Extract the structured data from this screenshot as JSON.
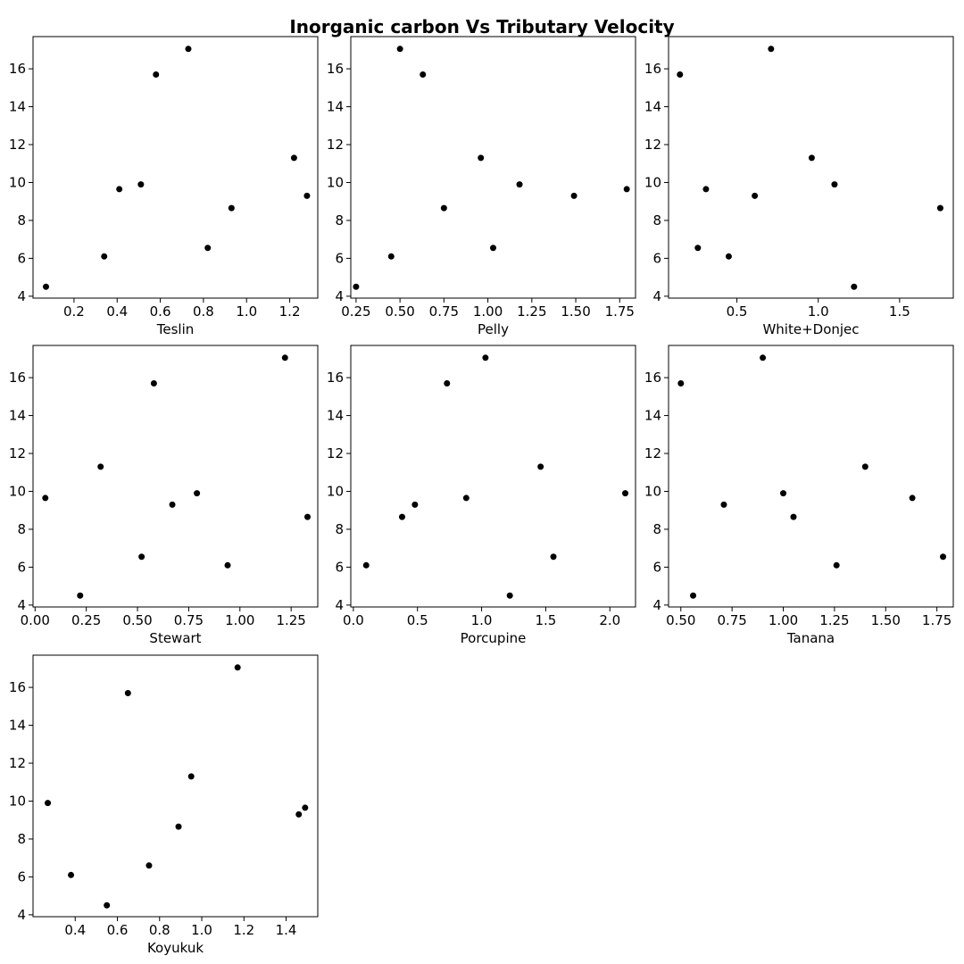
{
  "title": "Inorganic carbon Vs Tributary Velocity",
  "chart_data": [
    {
      "type": "scatter",
      "xlabel": "Teslin",
      "xlim": [
        0.01,
        1.33
      ],
      "ylim": [
        3.9,
        17.7
      ],
      "xticks": [
        0.2,
        0.4,
        0.6,
        0.8,
        1.0,
        1.2
      ],
      "yticks": [
        4,
        6,
        8,
        10,
        12,
        14,
        16
      ],
      "x": [
        0.07,
        0.34,
        0.41,
        0.51,
        0.58,
        0.73,
        0.82,
        0.93,
        1.22,
        1.28
      ],
      "y": [
        4.5,
        6.1,
        9.65,
        9.9,
        15.7,
        17.05,
        6.55,
        8.65,
        11.3,
        9.3
      ]
    },
    {
      "type": "scatter",
      "xlabel": "Pelly",
      "xlim": [
        0.22,
        1.84
      ],
      "ylim": [
        3.9,
        17.7
      ],
      "xticks": [
        0.25,
        0.5,
        0.75,
        1.0,
        1.25,
        1.5,
        1.75
      ],
      "yticks": [
        4,
        6,
        8,
        10,
        12,
        14,
        16
      ],
      "x": [
        0.25,
        0.45,
        0.5,
        0.63,
        0.75,
        0.96,
        1.03,
        1.18,
        1.49,
        1.79
      ],
      "y": [
        4.5,
        6.1,
        17.05,
        15.7,
        8.65,
        11.3,
        6.55,
        9.9,
        9.3,
        9.65
      ]
    },
    {
      "type": "scatter",
      "xlabel": "White+Donjec",
      "xlim": [
        0.08,
        1.83
      ],
      "ylim": [
        3.9,
        17.7
      ],
      "xticks": [
        0.5,
        1.0,
        1.5
      ],
      "yticks": [
        4,
        6,
        8,
        10,
        12,
        14,
        16
      ],
      "x": [
        0.15,
        0.26,
        0.31,
        0.45,
        0.61,
        0.71,
        0.96,
        1.1,
        1.22,
        1.75
      ],
      "y": [
        15.7,
        6.55,
        9.65,
        6.1,
        9.3,
        17.05,
        11.3,
        9.9,
        4.5,
        8.65
      ]
    },
    {
      "type": "scatter",
      "xlabel": "Stewart",
      "xlim": [
        -0.01,
        1.38
      ],
      "ylim": [
        3.9,
        17.7
      ],
      "xticks": [
        0.0,
        0.25,
        0.5,
        0.75,
        1.0,
        1.25
      ],
      "yticks": [
        4,
        6,
        8,
        10,
        12,
        14,
        16
      ],
      "x": [
        0.05,
        0.22,
        0.32,
        0.52,
        0.58,
        0.67,
        0.79,
        0.94,
        1.22,
        1.33
      ],
      "y": [
        9.65,
        4.5,
        11.3,
        6.55,
        15.7,
        9.3,
        9.9,
        6.1,
        17.05,
        8.65
      ]
    },
    {
      "type": "scatter",
      "xlabel": "Porcupine",
      "xlim": [
        -0.02,
        2.2
      ],
      "ylim": [
        3.9,
        17.7
      ],
      "xticks": [
        0.0,
        0.5,
        1.0,
        1.5,
        2.0
      ],
      "yticks": [
        4,
        6,
        8,
        10,
        12,
        14,
        16
      ],
      "x": [
        0.1,
        0.38,
        0.48,
        0.73,
        0.88,
        1.03,
        1.22,
        1.46,
        1.56,
        2.12
      ],
      "y": [
        6.1,
        8.65,
        9.3,
        15.7,
        9.65,
        17.05,
        4.5,
        11.3,
        6.55,
        9.9
      ]
    },
    {
      "type": "scatter",
      "xlabel": "Tanana",
      "xlim": [
        0.44,
        1.83
      ],
      "ylim": [
        3.9,
        17.7
      ],
      "xticks": [
        0.5,
        0.75,
        1.0,
        1.25,
        1.5,
        1.75
      ],
      "yticks": [
        4,
        6,
        8,
        10,
        12,
        14,
        16
      ],
      "x": [
        0.5,
        0.56,
        0.71,
        0.9,
        1.0,
        1.05,
        1.26,
        1.4,
        1.63,
        1.78
      ],
      "y": [
        15.7,
        4.5,
        9.3,
        17.05,
        9.9,
        8.65,
        6.1,
        11.3,
        9.65,
        6.55
      ]
    },
    {
      "type": "scatter",
      "xlabel": "Koyukuk",
      "xlim": [
        0.2,
        1.55
      ],
      "ylim": [
        3.9,
        17.7
      ],
      "xticks": [
        0.4,
        0.6,
        0.8,
        1.0,
        1.2,
        1.4
      ],
      "yticks": [
        4,
        6,
        8,
        10,
        12,
        14,
        16
      ],
      "x": [
        0.27,
        0.38,
        0.55,
        0.65,
        0.75,
        0.89,
        0.95,
        1.17,
        1.46,
        1.49
      ],
      "y": [
        9.9,
        6.1,
        4.5,
        15.7,
        6.6,
        8.65,
        11.3,
        17.05,
        9.3,
        9.65
      ]
    }
  ]
}
